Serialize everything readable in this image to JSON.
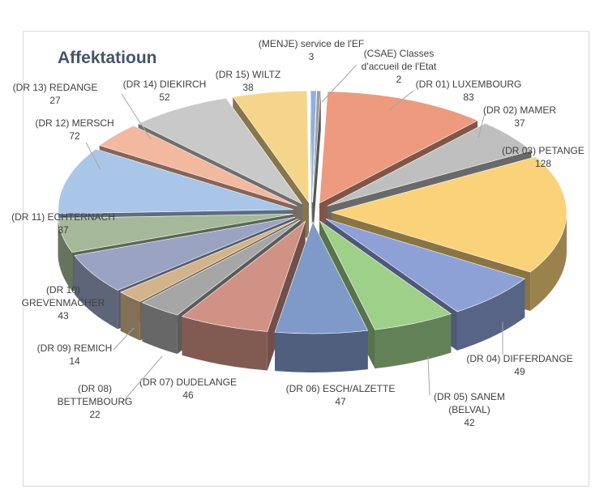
{
  "chart_data": {
    "type": "pie",
    "variant": "3d-exploded",
    "title": "Affektatioun",
    "legend": "none",
    "slices": [
      {
        "category": "(DR 01) LUXEMBOURG",
        "value": 83,
        "color": "#ed9a7f"
      },
      {
        "category": "(DR 02)  MAMER",
        "value": 37,
        "color": "#bfbfbf"
      },
      {
        "category": "(DR 03)  PETANGE",
        "value": 128,
        "color": "#f9d27a"
      },
      {
        "category": "(DR 04)  DIFFERDANGE",
        "value": 49,
        "color": "#8ea1d6"
      },
      {
        "category": "(DR 05) SANEM (BELVAL)",
        "value": 42,
        "color": "#9fd08a"
      },
      {
        "category": "(DR 06) ESCH/ALZETTE",
        "value": 47,
        "color": "#7f9ac9"
      },
      {
        "category": "(DR 07)  DUDELANGE",
        "value": 46,
        "color": "#d09284"
      },
      {
        "category": "(DR 08) BETTEMBOURG",
        "value": 22,
        "color": "#a6a6a6"
      },
      {
        "category": "(DR 09)  REMICH",
        "value": 14,
        "color": "#d2b48c"
      },
      {
        "category": "(DR 10) GREVENMACHER",
        "value": 43,
        "color": "#9aa3c2"
      },
      {
        "category": "(DR 11) ECHTERNACH",
        "value": 37,
        "color": "#a5b99a"
      },
      {
        "category": "(DR 12) MERSCH",
        "value": 72,
        "color": "#a9c6e8"
      },
      {
        "category": "(DR 13) REDANGE",
        "value": 27,
        "color": "#f2b8a0"
      },
      {
        "category": "(DR 14) DIEKIRCH",
        "value": 52,
        "color": "#c9c9c9"
      },
      {
        "category": "(DR 15) WILTZ",
        "value": 38,
        "color": "#f5d58a"
      },
      {
        "category": "(MENJE) service de l'EF",
        "value": 3,
        "color": "#8fb0e0"
      },
      {
        "category": "(CSAE) Classes d'accueil de l'Etat",
        "value": 2,
        "color": "#9e9e9e"
      }
    ]
  }
}
